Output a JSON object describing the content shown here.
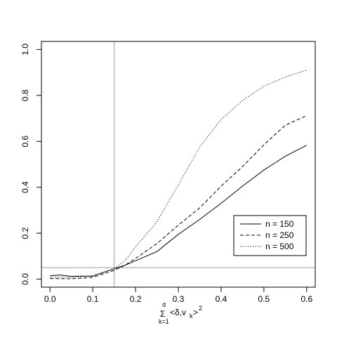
{
  "chart_data": {
    "type": "line",
    "xlim": [
      -0.02,
      0.62
    ],
    "ylim": [
      -0.035,
      1.035
    ],
    "x_ticks": [
      0.0,
      0.1,
      0.2,
      0.3,
      0.4,
      0.5,
      0.6
    ],
    "y_ticks": [
      0.0,
      0.2,
      0.4,
      0.6,
      0.8,
      1.0
    ],
    "x_tick_labels": [
      "0.0",
      "0.1",
      "0.2",
      "0.3",
      "0.4",
      "0.5",
      "0.6"
    ],
    "y_tick_labels": [
      "0.0",
      "0.2",
      "0.4",
      "0.6",
      "0.8",
      "1.0"
    ],
    "xlabel": {
      "sum_symbol": "Σ",
      "upper": "d",
      "lower": "k=1",
      "body": "<δ,v",
      "sub": "k",
      "close": ">",
      "sup": "2"
    },
    "ylabel": "",
    "title": "",
    "grid": false,
    "legend_position": "bottom-right",
    "reference_lines": {
      "vertical_x": 0.15,
      "horizontal_y": 0.05
    },
    "x": [
      0.0,
      0.025,
      0.05,
      0.075,
      0.1,
      0.15,
      0.175,
      0.2,
      0.25,
      0.3,
      0.35,
      0.4,
      0.45,
      0.5,
      0.55,
      0.6
    ],
    "series": [
      {
        "name": "n = 150",
        "dash": "solid",
        "values": [
          0.015,
          0.018,
          0.012,
          0.013,
          0.013,
          0.045,
          0.06,
          0.08,
          0.12,
          0.195,
          0.26,
          0.33,
          0.405,
          0.475,
          0.535,
          0.583
        ]
      },
      {
        "name": "n = 250",
        "dash": "dashed",
        "values": [
          0.003,
          0.002,
          0.002,
          0.004,
          0.008,
          0.038,
          0.06,
          0.09,
          0.155,
          0.235,
          0.31,
          0.405,
          0.49,
          0.585,
          0.67,
          0.712
        ]
      },
      {
        "name": "n = 500",
        "dash": "dotted",
        "values": [
          0.008,
          0.008,
          0.008,
          0.01,
          0.015,
          0.045,
          0.08,
          0.14,
          0.25,
          0.41,
          0.575,
          0.695,
          0.778,
          0.84,
          0.88,
          0.91
        ]
      }
    ]
  }
}
